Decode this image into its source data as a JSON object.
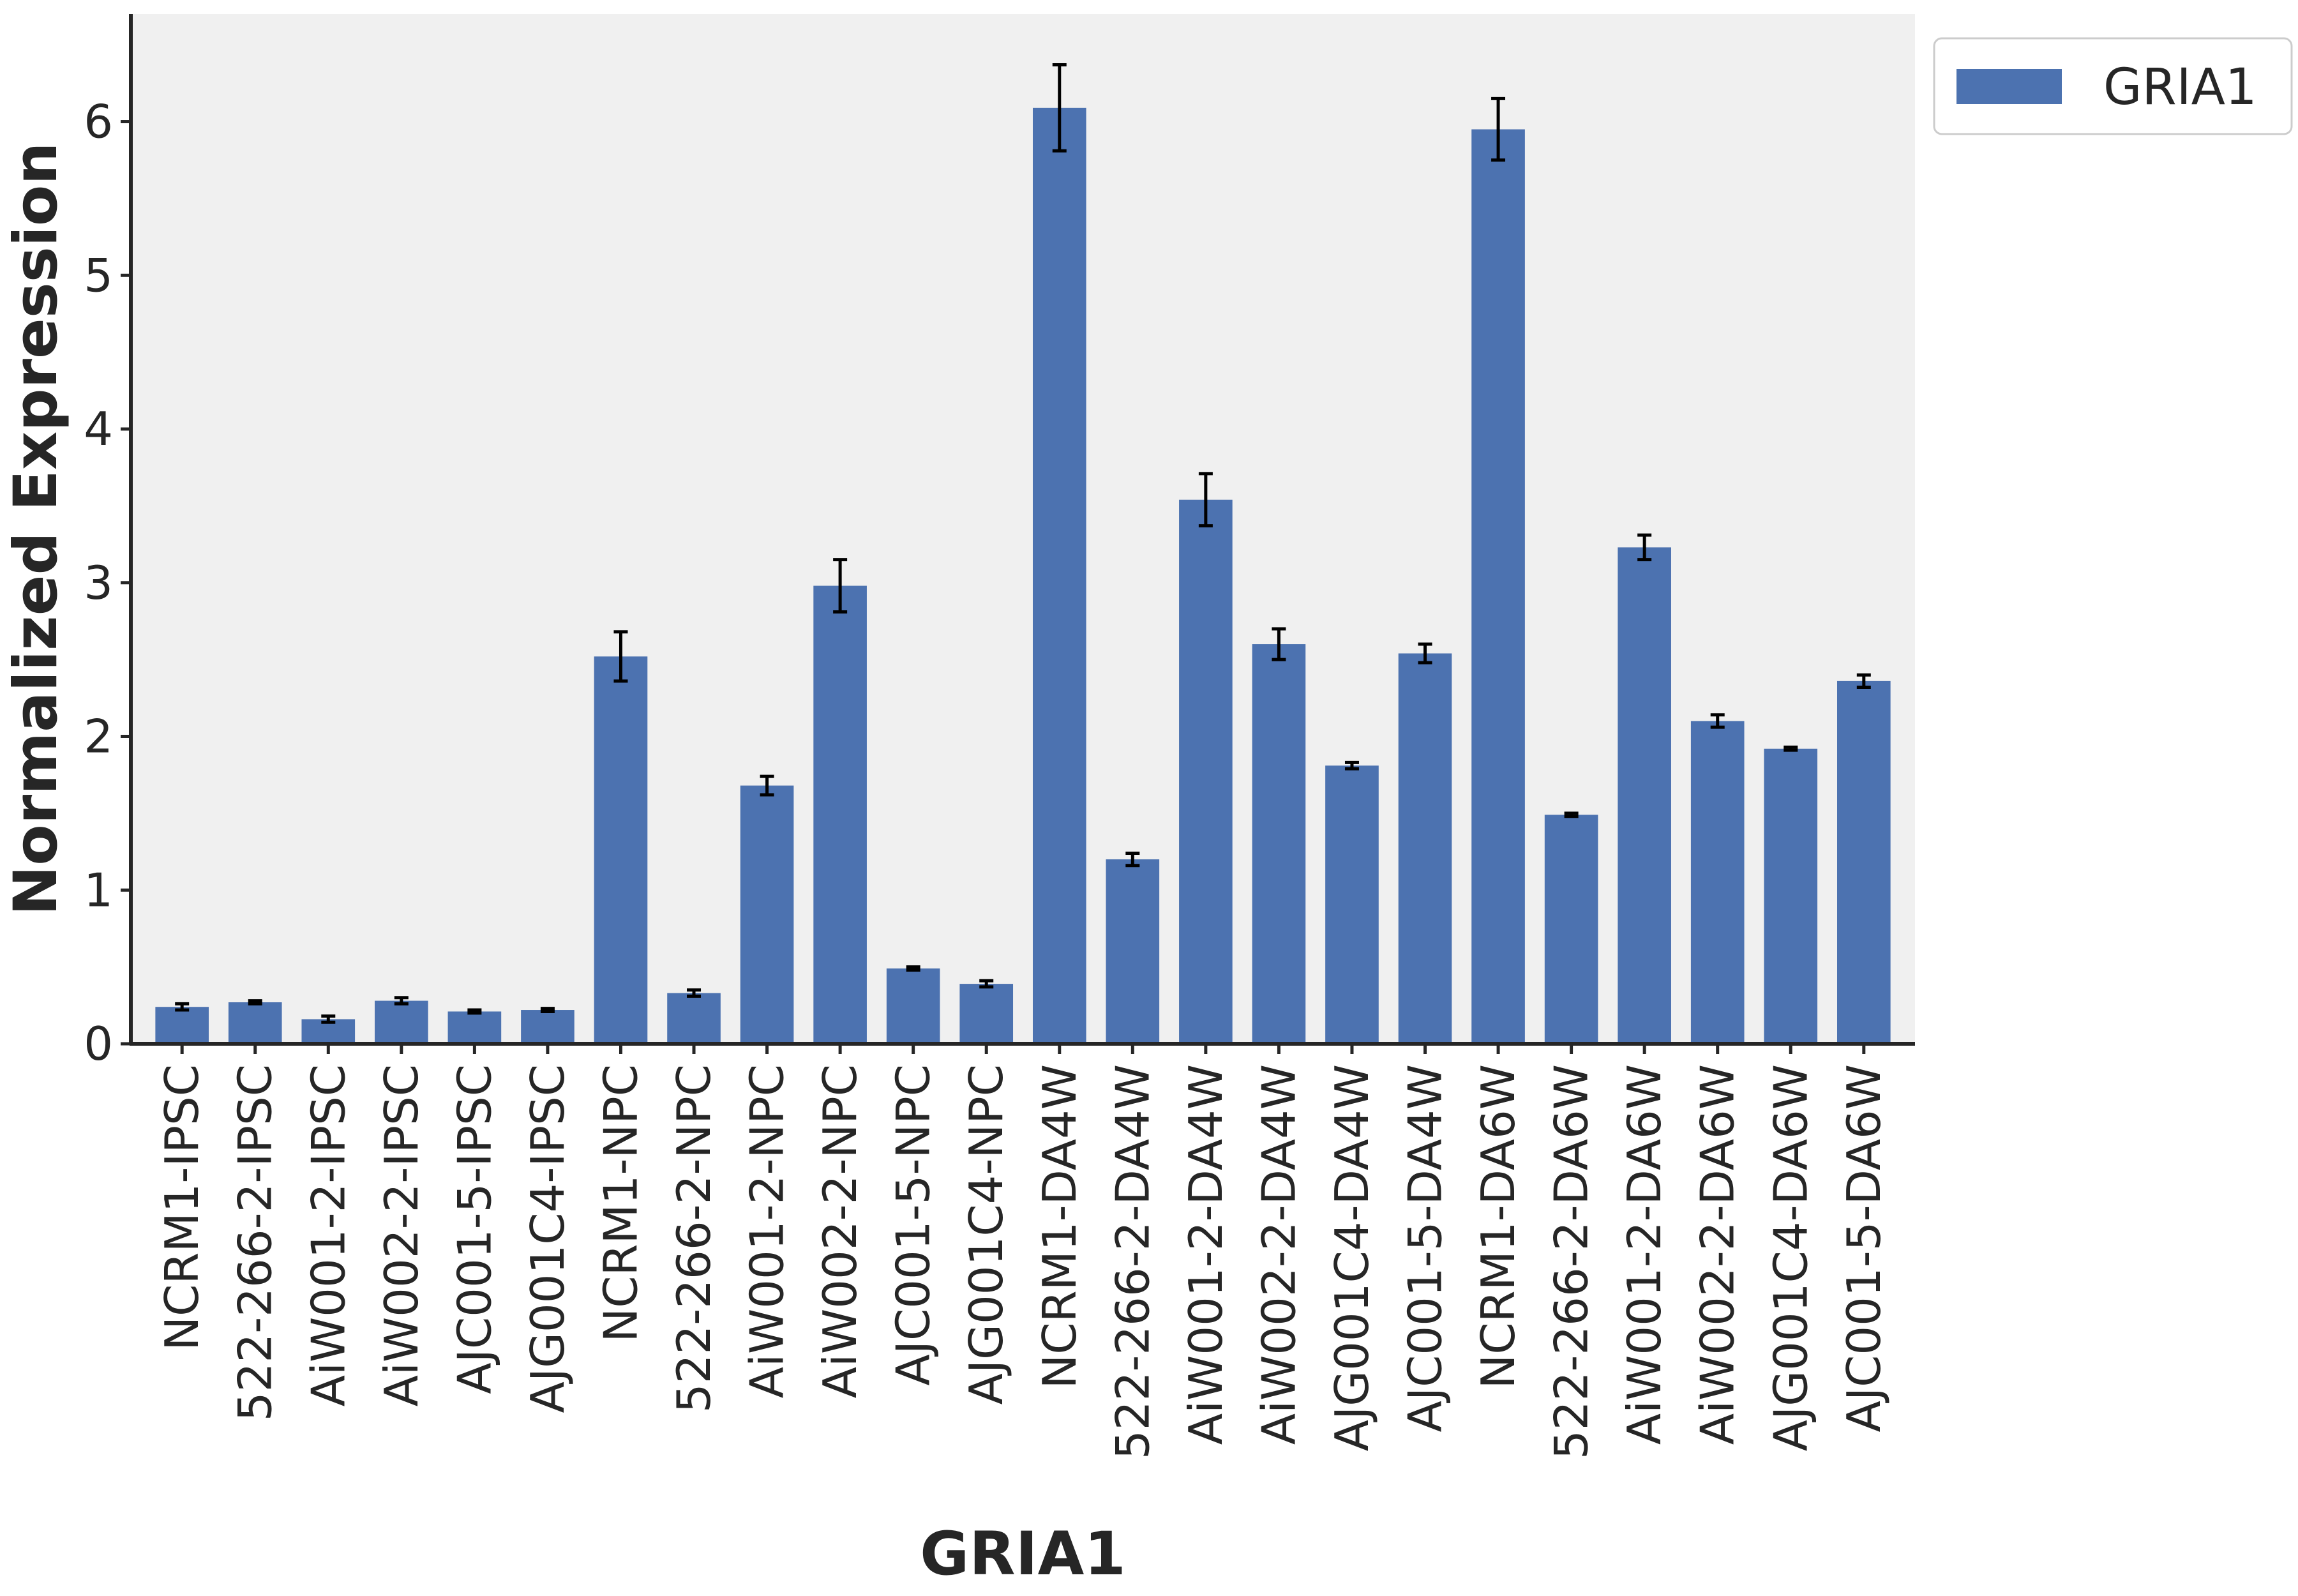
{
  "chart_data": {
    "type": "bar",
    "xlabel": "GRIA1",
    "ylabel": "Normalized Expression",
    "ylim": [
      0,
      6.7
    ],
    "yticks": [
      0,
      1,
      2,
      3,
      4,
      5,
      6
    ],
    "grid": false,
    "legend": {
      "placement": "top-right outside"
    },
    "colors": {
      "bar": "#4c72b0",
      "plot_bg": "#f0f0f0",
      "axis": "#262626",
      "error_bar": "#000000"
    },
    "categories": [
      "NCRM1-IPSC",
      "522-266-2-IPSC",
      "AiW001-2-IPSC",
      "AiW002-2-IPSC",
      "AJC001-5-IPSC",
      "AJG001C4-IPSC",
      "NCRM1-NPC",
      "522-266-2-NPC",
      "AiW001-2-NPC",
      "AiW002-2-NPC",
      "AJC001-5-NPC",
      "AJG001C4-NPC",
      "NCRM1-DA4W",
      "522-266-2-DA4W",
      "AiW001-2-DA4W",
      "AiW002-2-DA4W",
      "AJG001C4-DA4W",
      "AJC001-5-DA4W",
      "NCRM1-DA6W",
      "522-266-2-DA6W",
      "AiW001-2-DA6W",
      "AiW002-2-DA6W",
      "AJG001C4-DA6W",
      "AJC001-5-DA6W"
    ],
    "series": [
      {
        "name": "GRIA1",
        "values": [
          0.24,
          0.27,
          0.16,
          0.28,
          0.21,
          0.22,
          2.52,
          0.33,
          1.68,
          2.98,
          0.49,
          0.39,
          6.09,
          1.2,
          3.54,
          2.6,
          1.81,
          2.54,
          5.95,
          1.49,
          3.23,
          2.1,
          1.92,
          2.36
        ],
        "errors": [
          0.02,
          0.01,
          0.02,
          0.02,
          0.01,
          0.01,
          0.16,
          0.02,
          0.06,
          0.17,
          0.01,
          0.02,
          0.28,
          0.04,
          0.17,
          0.1,
          0.02,
          0.06,
          0.2,
          0.01,
          0.08,
          0.04,
          0.01,
          0.04
        ]
      }
    ]
  }
}
